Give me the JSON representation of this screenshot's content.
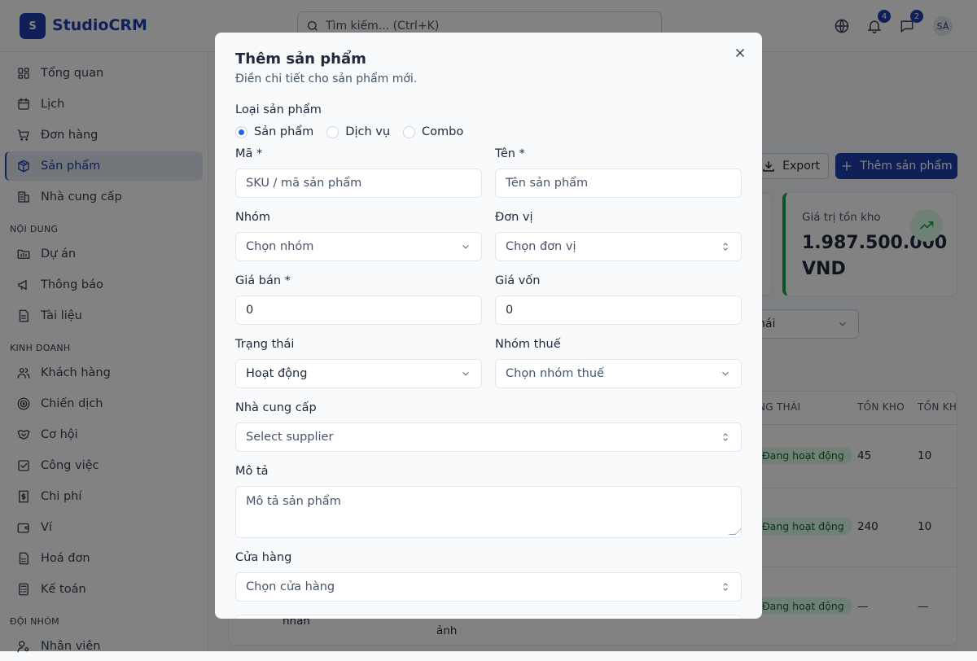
{
  "app": {
    "logo_letter": "S",
    "brand": "StudioCRM"
  },
  "topbar": {
    "search_placeholder": "Tìm kiếm... (Ctrl+K)",
    "notifications_count": "4",
    "messages_count": "2",
    "avatar_initials": "SÁ"
  },
  "sidebar": {
    "main": [
      {
        "label": "Tổng quan",
        "icon": "dashboard"
      },
      {
        "label": "Lịch",
        "icon": "calendar"
      },
      {
        "label": "Đơn hàng",
        "icon": "cart"
      },
      {
        "label": "Sản phẩm",
        "icon": "package",
        "active": true
      },
      {
        "label": "Nhà cung cấp",
        "icon": "building"
      }
    ],
    "section1": "NỘI DUNG",
    "content": [
      {
        "label": "Dự án",
        "icon": "folder"
      },
      {
        "label": "Thông báo",
        "icon": "megaphone"
      },
      {
        "label": "Tài liệu",
        "icon": "file"
      }
    ],
    "section2": "KINH DOANH",
    "business": [
      {
        "label": "Khách hàng",
        "icon": "users"
      },
      {
        "label": "Chiến dịch",
        "icon": "target"
      },
      {
        "label": "Cơ hội",
        "icon": "handshake"
      },
      {
        "label": "Công việc",
        "icon": "checkbox"
      },
      {
        "label": "Chi phí",
        "icon": "receipt"
      },
      {
        "label": "Ví",
        "icon": "wallet"
      },
      {
        "label": "Hoá đơn",
        "icon": "invoice"
      },
      {
        "label": "Kế toán",
        "icon": "calculator"
      }
    ],
    "section3": "ĐỘI NHÓM",
    "team": [
      {
        "label": "Nhân viên",
        "icon": "user-cog"
      }
    ]
  },
  "page": {
    "export_label": "Export",
    "add_label": "Thêm sản phẩm",
    "stat_card": {
      "label": "Giá trị tồn kho",
      "value": "1.987.500.000 VND"
    },
    "filter_partial": "hái",
    "table": {
      "headers": [
        "NG THÁI",
        "TỒN KHO",
        "TỒN KH"
      ],
      "rows": [
        {
          "status": "Đang hoạt động",
          "stock": "45",
          "min": "10"
        },
        {
          "status": "Đang hoạt động",
          "stock": "240",
          "min": "10"
        },
        {
          "status": "Đang hoạt động",
          "stock": "—",
          "min": "—",
          "text1": "nhân",
          "text2": "ảnh"
        }
      ]
    }
  },
  "modal": {
    "title": "Thêm sản phẩm",
    "subtitle": "Điền chi tiết cho sản phẩm mới.",
    "type_label": "Loại sản phẩm",
    "types": [
      "Sản phẩm",
      "Dịch vụ",
      "Combo"
    ],
    "type_selected": "Sản phẩm",
    "code_label": "Mã *",
    "code_placeholder": "SKU / mã sản phẩm",
    "name_label": "Tên *",
    "name_placeholder": "Tên sản phẩm",
    "group_label": "Nhóm",
    "group_value": "Chọn nhóm",
    "unit_label": "Đơn vị",
    "unit_value": "Chọn đơn vị",
    "price_label": "Giá bán *",
    "price_value": "0",
    "cost_label": "Giá vốn",
    "cost_value": "0",
    "status_label": "Trạng thái",
    "status_value": "Hoạt động",
    "tax_label": "Nhóm thuế",
    "tax_value": "Chọn nhóm thuế",
    "supplier_label": "Nhà cung cấp",
    "supplier_value": "Select supplier",
    "desc_label": "Mô tả",
    "desc_placeholder": "Mô tả sản phẩm",
    "store_label": "Cửa hàng",
    "store_value": "Chọn cửa hàng"
  }
}
